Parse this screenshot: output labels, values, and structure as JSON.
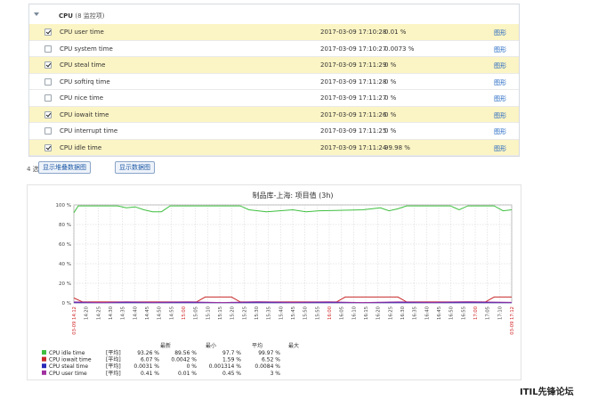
{
  "group": {
    "title": "CPU",
    "count_label": "(8 监控项)"
  },
  "rows": [
    {
      "name": "CPU user time",
      "time": "2017-03-09 17:10:28",
      "value": "0.01 %",
      "link": "图形",
      "checked": true
    },
    {
      "name": "CPU system time",
      "time": "2017-03-09 17:10:27",
      "value": "0.0073 %",
      "link": "图形",
      "checked": false
    },
    {
      "name": "CPU steal time",
      "time": "2017-03-09 17:11:29",
      "value": "0 %",
      "link": "图形",
      "checked": true
    },
    {
      "name": "CPU softirq time",
      "time": "2017-03-09 17:11:28",
      "value": "0 %",
      "link": "图形",
      "checked": false
    },
    {
      "name": "CPU nice time",
      "time": "2017-03-09 17:11:27",
      "value": "0 %",
      "link": "图形",
      "checked": false
    },
    {
      "name": "CPU iowait time",
      "time": "2017-03-09 17:11:26",
      "value": "0 %",
      "link": "图形",
      "checked": true
    },
    {
      "name": "CPU interrupt time",
      "time": "2017-03-09 17:11:25",
      "value": "0 %",
      "link": "图形",
      "checked": false
    },
    {
      "name": "CPU idle time",
      "time": "2017-03-09 17:11:24",
      "value": "99.98 %",
      "link": "图形",
      "checked": true
    }
  ],
  "footer": {
    "selected_count": "4 选择",
    "stacked_button": "显示堆叠数据图",
    "graph_button": "显示数据图"
  },
  "brand": "ITIL先锋论坛",
  "colors": {
    "selected_row": "#fbf4c4",
    "link": "#1f65c2",
    "idle": "#3fbf3f",
    "iowait": "#c82a2a",
    "steal": "#2a2ab8",
    "user": "#a030a0"
  },
  "chart_data": {
    "type": "line",
    "title": "制品库-上海: 项目值 (3h)",
    "ylim": [
      0,
      100
    ],
    "y_ticks": [
      "0 %",
      "20 %",
      "40 %",
      "60 %",
      "80 %",
      "100 %"
    ],
    "x_ticks": [
      {
        "label": "03-09 14:12",
        "red": true
      },
      {
        "label": "14:20",
        "red": false
      },
      {
        "label": "14:25",
        "red": false
      },
      {
        "label": "14:30",
        "red": false
      },
      {
        "label": "14:35",
        "red": false
      },
      {
        "label": "14:40",
        "red": false
      },
      {
        "label": "14:45",
        "red": false
      },
      {
        "label": "14:50",
        "red": false
      },
      {
        "label": "14:55",
        "red": false
      },
      {
        "label": "15:00",
        "red": true
      },
      {
        "label": "15:05",
        "red": false
      },
      {
        "label": "15:10",
        "red": false
      },
      {
        "label": "15:15",
        "red": false
      },
      {
        "label": "15:20",
        "red": false
      },
      {
        "label": "15:25",
        "red": false
      },
      {
        "label": "15:30",
        "red": false
      },
      {
        "label": "15:35",
        "red": false
      },
      {
        "label": "15:40",
        "red": false
      },
      {
        "label": "15:45",
        "red": false
      },
      {
        "label": "15:50",
        "red": false
      },
      {
        "label": "15:55",
        "red": false
      },
      {
        "label": "16:00",
        "red": true
      },
      {
        "label": "16:05",
        "red": false
      },
      {
        "label": "16:10",
        "red": false
      },
      {
        "label": "16:15",
        "red": false
      },
      {
        "label": "16:20",
        "red": false
      },
      {
        "label": "16:25",
        "red": false
      },
      {
        "label": "16:30",
        "red": false
      },
      {
        "label": "16:35",
        "red": false
      },
      {
        "label": "16:40",
        "red": false
      },
      {
        "label": "16:45",
        "red": false
      },
      {
        "label": "16:50",
        "red": false
      },
      {
        "label": "16:55",
        "red": false
      },
      {
        "label": "17:00",
        "red": true
      },
      {
        "label": "17:05",
        "red": false
      },
      {
        "label": "17:10",
        "red": false
      },
      {
        "label": "03-09 17:12",
        "red": true
      }
    ],
    "series": [
      {
        "name": "CPU idle time",
        "color": "#3fbf3f",
        "points": [
          [
            0,
            92
          ],
          [
            1,
            99
          ],
          [
            10,
            99
          ],
          [
            12,
            97
          ],
          [
            14,
            98
          ],
          [
            16,
            95
          ],
          [
            18,
            93
          ],
          [
            20,
            93
          ],
          [
            22,
            99
          ],
          [
            38,
            99
          ],
          [
            40,
            95
          ],
          [
            44,
            93
          ],
          [
            50,
            95
          ],
          [
            53,
            93
          ],
          [
            56,
            94
          ],
          [
            66,
            95
          ],
          [
            70,
            97
          ],
          [
            72,
            94
          ],
          [
            74,
            96
          ],
          [
            76,
            99
          ],
          [
            86,
            99
          ],
          [
            88,
            95
          ],
          [
            90,
            99
          ],
          [
            96,
            99
          ],
          [
            98,
            94
          ],
          [
            100,
            95
          ]
        ]
      },
      {
        "name": "CPU iowait time",
        "color": "#c82a2a",
        "points": [
          [
            0,
            5
          ],
          [
            2,
            1
          ],
          [
            28,
            1
          ],
          [
            30,
            6
          ],
          [
            36,
            6
          ],
          [
            38,
            1
          ],
          [
            60,
            1
          ],
          [
            62,
            6
          ],
          [
            74,
            6
          ],
          [
            76,
            1
          ],
          [
            94,
            1
          ],
          [
            96,
            6
          ],
          [
            100,
            6
          ]
        ]
      },
      {
        "name": "CPU steal time",
        "color": "#2a2ab8",
        "points": [
          [
            0,
            0.3
          ],
          [
            100,
            0.3
          ]
        ]
      },
      {
        "name": "CPU user time",
        "color": "#a030a0",
        "points": [
          [
            0,
            1
          ],
          [
            6,
            0.4
          ],
          [
            12,
            1
          ],
          [
            18,
            0.5
          ],
          [
            26,
            1
          ],
          [
            34,
            0.4
          ],
          [
            42,
            1.2
          ],
          [
            50,
            0.5
          ],
          [
            58,
            1
          ],
          [
            66,
            0.4
          ],
          [
            74,
            1
          ],
          [
            82,
            0.5
          ],
          [
            90,
            1.2
          ],
          [
            100,
            0.5
          ]
        ]
      }
    ],
    "legend_headers": [
      "最新",
      "最小",
      "平均",
      "最大"
    ],
    "legend": [
      {
        "name": "CPU idle time",
        "func": "[平均]",
        "last": "93.26 %",
        "min": "89.56 %",
        "avg": "97.7 %",
        "max": "99.97 %",
        "color": "#3fbf3f"
      },
      {
        "name": "CPU iowait time",
        "func": "[平均]",
        "last": "6.07 %",
        "min": "0.0042 %",
        "avg": "1.59 %",
        "max": "6.52 %",
        "color": "#c82a2a"
      },
      {
        "name": "CPU steal time",
        "func": "[平均]",
        "last": "0.0031 %",
        "min": "0 %",
        "avg": "0.001314 %",
        "max": "0.0084 %",
        "color": "#2a2ab8"
      },
      {
        "name": "CPU user time",
        "func": "[平均]",
        "last": "0.41 %",
        "min": "0.01 %",
        "avg": "0.45 %",
        "max": "3 %",
        "color": "#a030a0"
      }
    ]
  }
}
